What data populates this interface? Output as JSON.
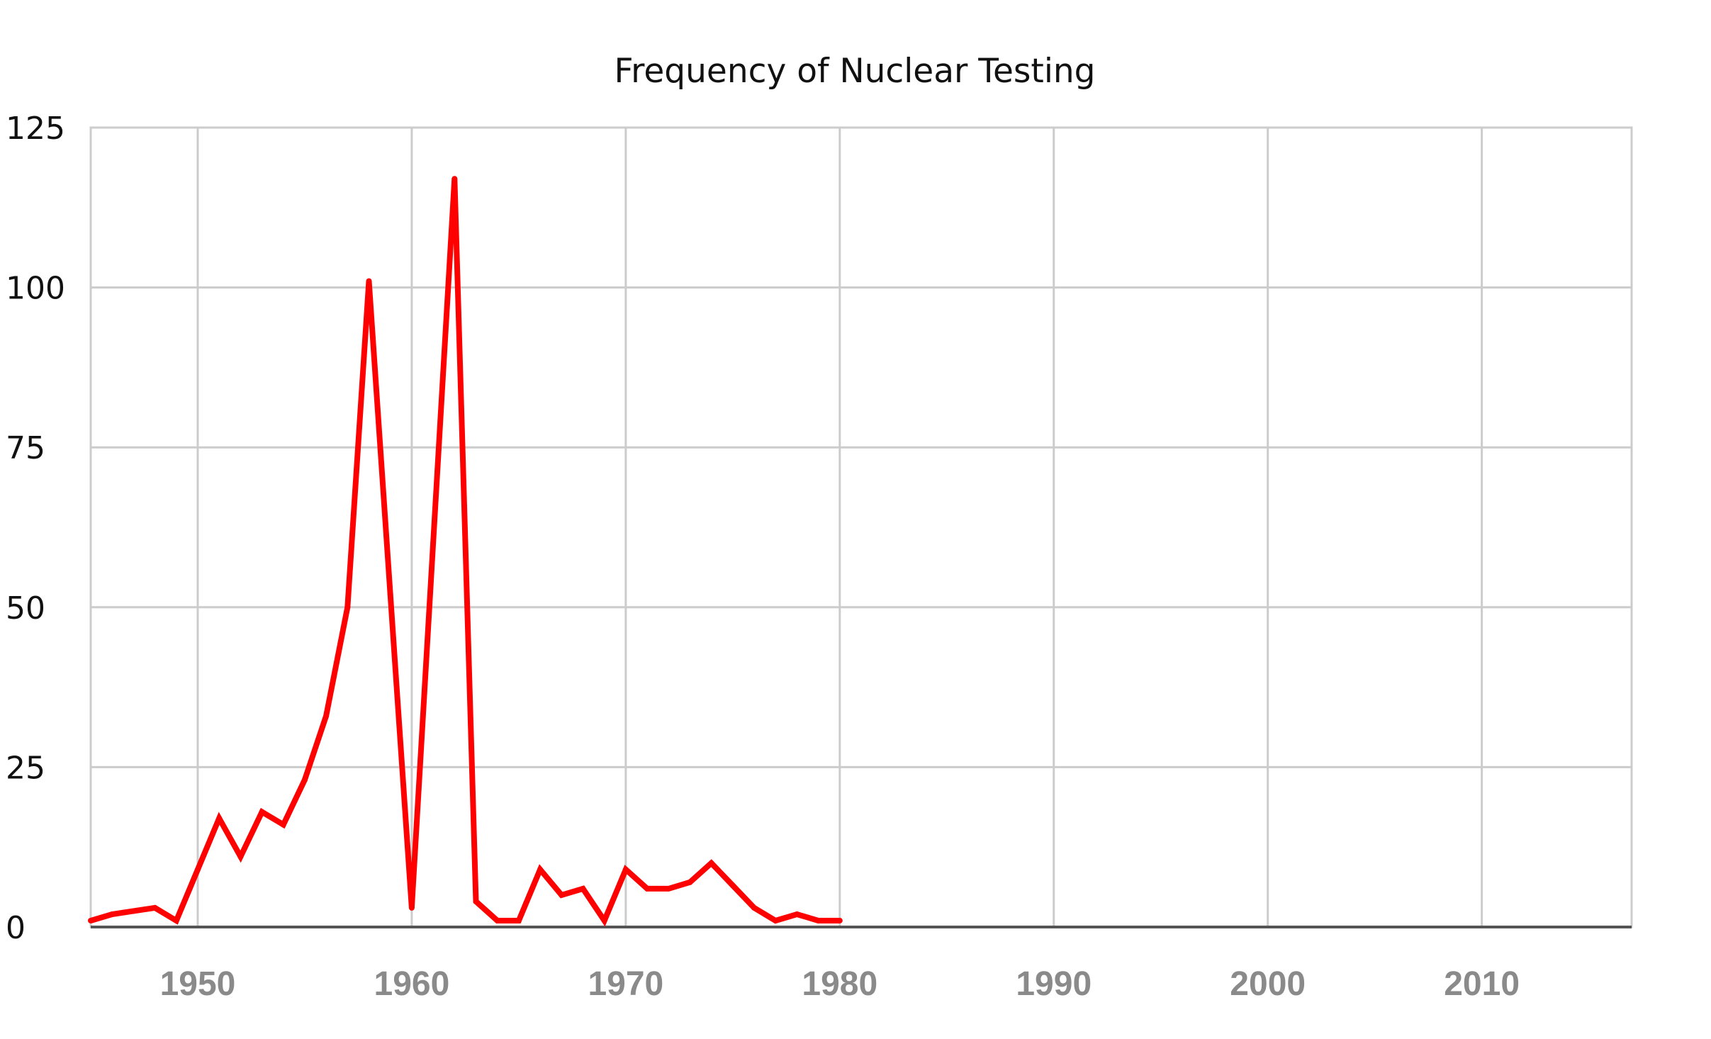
{
  "chart_data": {
    "type": "line",
    "title": "Frequency of Nuclear Testing",
    "xlabel": "",
    "ylabel": "",
    "xlim": [
      1945,
      2017
    ],
    "ylim": [
      0,
      125
    ],
    "y_ticks": [
      0,
      25,
      50,
      75,
      100,
      125
    ],
    "x_ticks": [
      1950,
      1960,
      1970,
      1980,
      1990,
      2000,
      2010
    ],
    "grid": true,
    "line_color": "#ff0000",
    "series": [
      {
        "x": [
          1945,
          1946,
          1947,
          1948,
          1949,
          1950,
          1951,
          1952,
          1953,
          1954,
          1955,
          1956,
          1957,
          1958,
          1959,
          1960,
          1961,
          1962,
          1963,
          1964,
          1965,
          1966,
          1967,
          1968,
          1969,
          1970,
          1971,
          1972,
          1973,
          1974,
          1975,
          1976,
          1977,
          1978,
          1979,
          1980
        ],
        "values": [
          1,
          2,
          2.5,
          3,
          1,
          9,
          17,
          11,
          18,
          16,
          23,
          33,
          50,
          101,
          52,
          3,
          60,
          117,
          4,
          1,
          1,
          9,
          5,
          6,
          1,
          9,
          6,
          6,
          7,
          10,
          6.5,
          3,
          1,
          2,
          1,
          1
        ]
      }
    ]
  }
}
